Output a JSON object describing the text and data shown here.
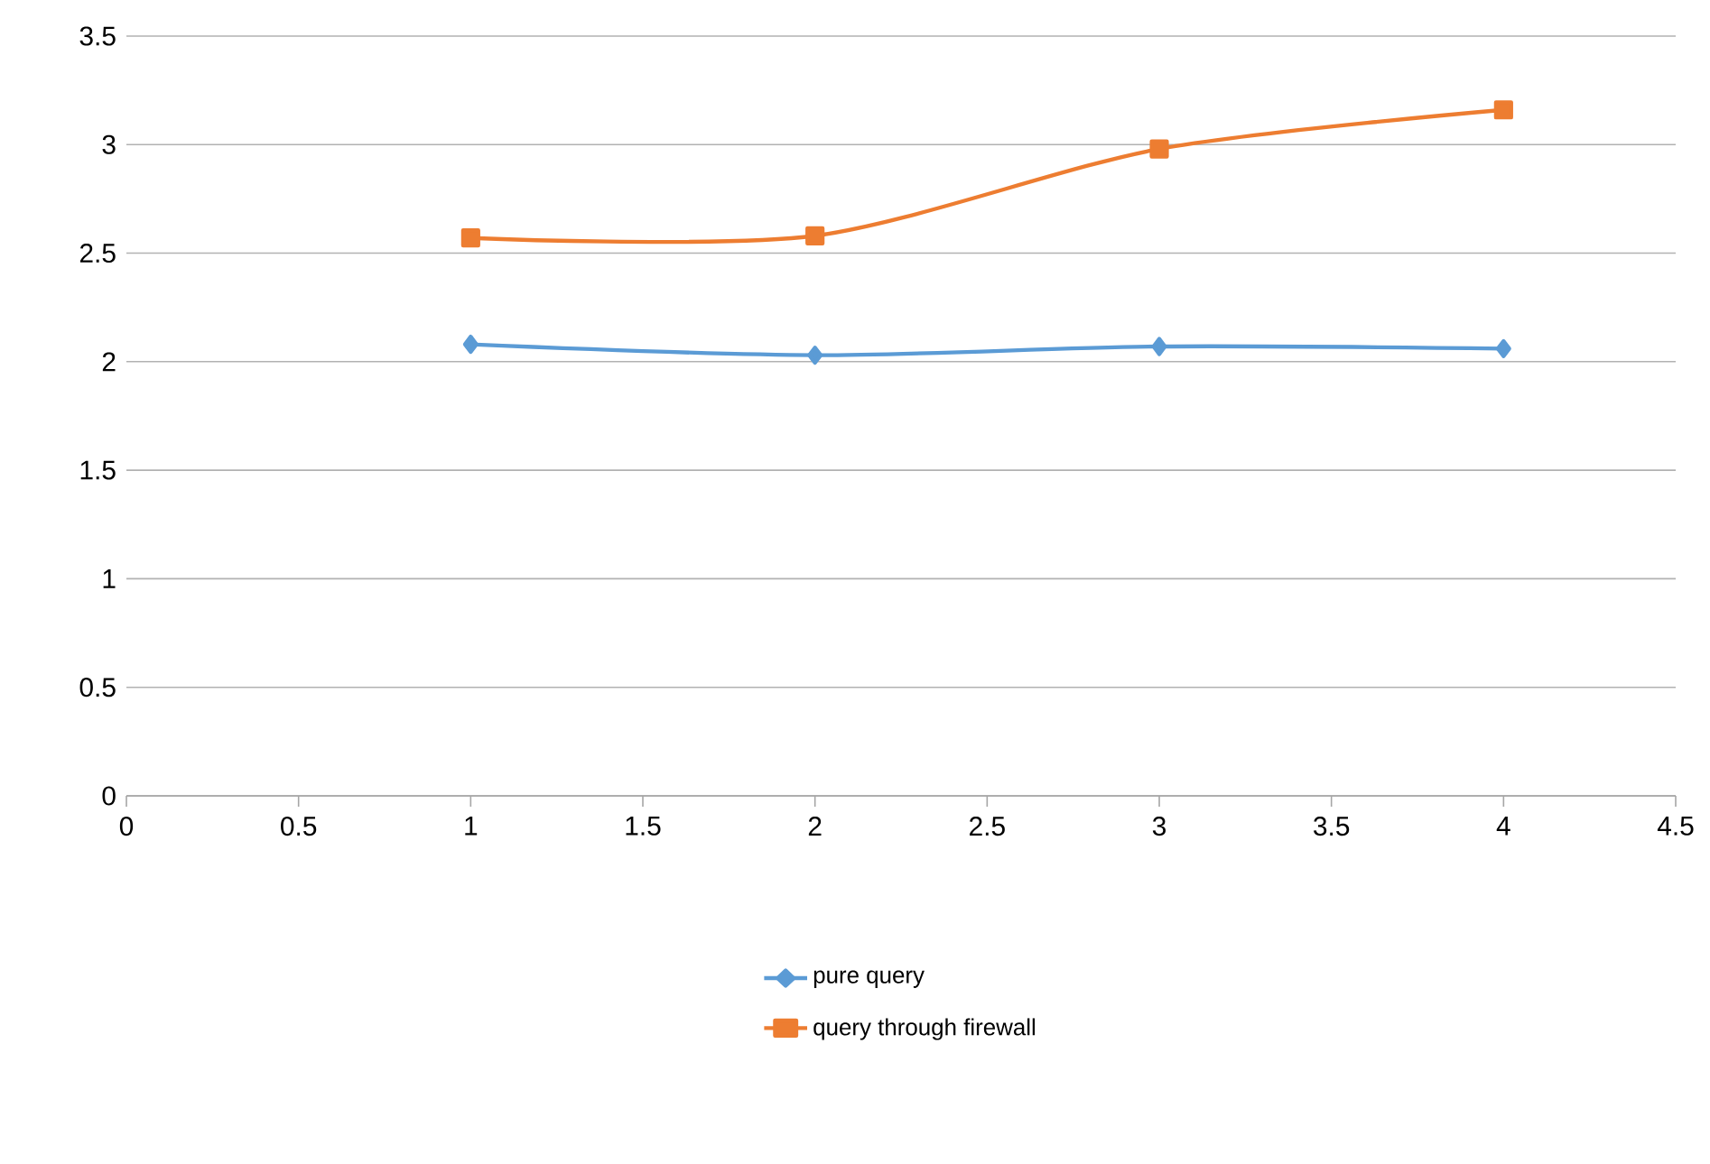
{
  "chart_data": {
    "type": "line",
    "x": [
      1,
      2,
      3,
      4
    ],
    "series": [
      {
        "name": "pure query",
        "color": "#5b9bd5",
        "values": [
          2.08,
          2.03,
          2.07,
          2.06
        ],
        "marker": "diamond"
      },
      {
        "name": "query through firewall",
        "color": "#ed7d31",
        "values": [
          2.57,
          2.58,
          2.98,
          3.16
        ],
        "marker": "square"
      }
    ],
    "xlim": [
      0,
      4.5
    ],
    "xticks": [
      0,
      0.5,
      1,
      1.5,
      2,
      2.5,
      3,
      3.5,
      4,
      4.5
    ],
    "ylim": [
      0,
      3.5
    ],
    "yticks": [
      0,
      0.5,
      1,
      1.5,
      2,
      2.5,
      3,
      3.5
    ],
    "grid": "y",
    "legend": "bottom",
    "line_style": "solid"
  }
}
